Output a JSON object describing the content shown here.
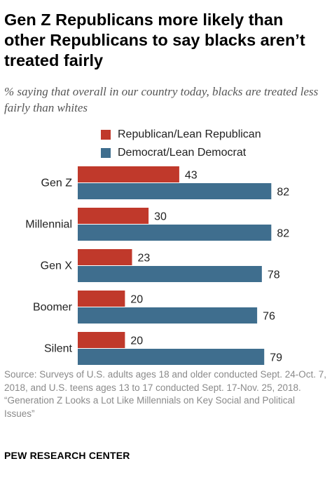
{
  "header": {
    "title": "Gen Z Republicans more likely than other Republicans to say blacks aren’t treated fairly",
    "subtitle": "% saying that overall in our country today, blacks are treated less fairly than whites"
  },
  "legend": [
    {
      "label": "Republican/Lean Republican",
      "color": "#c0392b"
    },
    {
      "label": "Democrat/Lean Democrat",
      "color": "#3f6e8e"
    }
  ],
  "chart_data": {
    "type": "bar",
    "orientation": "horizontal",
    "categories": [
      "Gen Z",
      "Millennial",
      "Gen X",
      "Boomer",
      "Silent"
    ],
    "series": [
      {
        "name": "Republican/Lean Republican",
        "color": "#c0392b",
        "values": [
          43,
          30,
          23,
          20,
          20
        ]
      },
      {
        "name": "Democrat/Lean Democrat",
        "color": "#3f6e8e",
        "values": [
          82,
          82,
          78,
          76,
          79
        ]
      }
    ],
    "xlim": [
      0,
      100
    ],
    "grid": false,
    "data_labels": true,
    "legend_position": "top"
  },
  "footer": {
    "source": "Source: Surveys of U.S. adults ages 18 and older conducted Sept. 24-Oct. 7, 2018, and U.S. teens ages 13 to 17 conducted Sept. 17-Nov. 25, 2018.",
    "report": "“Generation Z Looks a Lot Like Millennials on Key Social and Political Issues”",
    "brand": "PEW RESEARCH CENTER"
  }
}
